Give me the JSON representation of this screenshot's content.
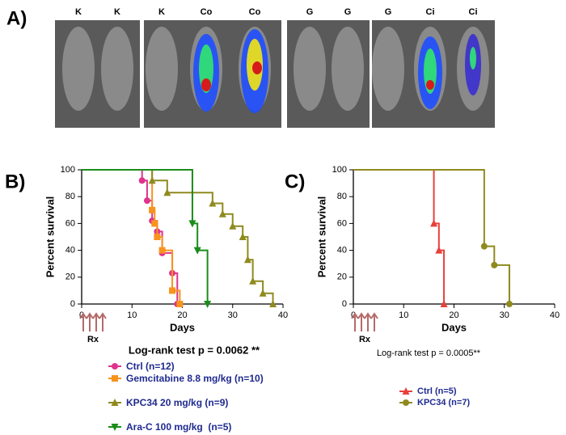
{
  "panels": {
    "a": "A)",
    "b": "B)",
    "c": "C)"
  },
  "image_labels": [
    "K",
    "K",
    "K",
    "Co",
    "Co",
    "G",
    "G",
    "G",
    "Ci",
    "Ci"
  ],
  "chart_data": [
    {
      "type": "step",
      "xlabel": "Days",
      "ylabel": "Percent survival",
      "xlim": [
        0,
        40
      ],
      "ylim": [
        0,
        100
      ],
      "xticks": [
        0,
        10,
        20,
        30,
        40
      ],
      "yticks": [
        0,
        20,
        40,
        60,
        80,
        100
      ],
      "treatment": "Rx",
      "annotation": "Log-rank test p = 0.0062 **",
      "series": [
        {
          "name": "Ctrl (n=12)",
          "color": "#e0338c",
          "marker": "circle",
          "x": [
            0,
            12,
            13,
            14,
            15,
            16,
            18,
            19
          ],
          "values": [
            100,
            92,
            77,
            62,
            54,
            38,
            23,
            0
          ]
        },
        {
          "name": "Gemcitabine 8.8 mg/kg (n=10)",
          "color": "#f7931e",
          "marker": "square",
          "x": [
            0,
            14,
            14.5,
            15,
            16,
            18,
            19.5
          ],
          "values": [
            100,
            70,
            60,
            50,
            40,
            10,
            0
          ]
        },
        {
          "name": "KPC34 20 mg/kg (n=9)",
          "color": "#8f8a1e",
          "marker": "triangle",
          "x": [
            0,
            14,
            17,
            26,
            28,
            30,
            32,
            33,
            34,
            36,
            38
          ],
          "values": [
            100,
            92,
            83,
            75,
            67,
            58,
            50,
            33,
            17,
            8,
            0
          ]
        },
        {
          "name": "Ara-C 100 mg/kg  (n=5)",
          "color": "#1a8c1a",
          "marker": "triangle-down",
          "x": [
            0,
            22,
            23,
            25
          ],
          "values": [
            100,
            60,
            40,
            0
          ]
        }
      ]
    },
    {
      "type": "step",
      "xlabel": "Days",
      "ylabel": "Percent survival",
      "xlim": [
        0,
        40
      ],
      "ylim": [
        0,
        100
      ],
      "xticks": [
        0,
        10,
        20,
        30,
        40
      ],
      "yticks": [
        0,
        20,
        40,
        60,
        80,
        100
      ],
      "treatment": "Rx",
      "annotation": "Log-rank test p = 0.0005**",
      "series": [
        {
          "name": "Ctrl (n=5)",
          "color": "#e8403a",
          "marker": "triangle",
          "x": [
            0,
            16,
            17,
            18
          ],
          "values": [
            100,
            60,
            40,
            0
          ]
        },
        {
          "name": "KPC34 (n=7)",
          "color": "#8f8a1e",
          "marker": "circle",
          "x": [
            0,
            26,
            28,
            31
          ],
          "values": [
            100,
            43,
            29,
            0
          ]
        }
      ]
    }
  ]
}
